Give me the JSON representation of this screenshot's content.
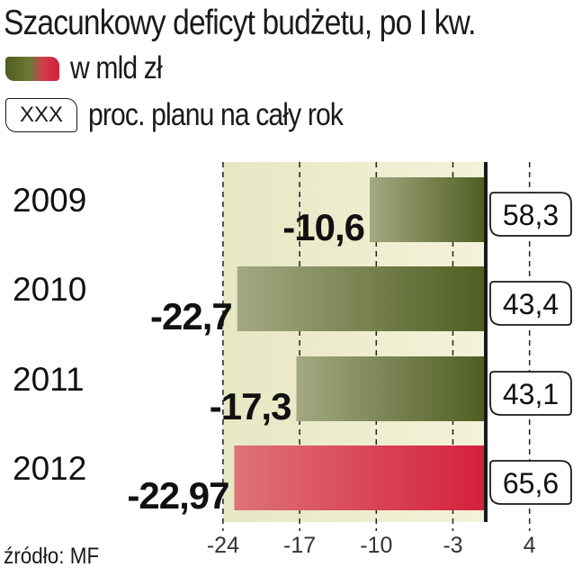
{
  "legend": {
    "value_label": "w mld zł",
    "box_sample": "XXX",
    "box_label": "proc. planu na cały rok"
  },
  "source": "źródło: MF",
  "colors": {
    "bar_dark": "#4f5e22",
    "bar_light": "#a3a982",
    "highlight_dark": "#d4203c",
    "highlight_light": "#de7276",
    "plot_bg": "#f4f3d9",
    "axis": "#1a1a1a"
  },
  "chart_data": {
    "type": "bar",
    "orientation": "horizontal",
    "title": "Szacunkowy deficyt budżetu, po I kw.",
    "categories": [
      "2009",
      "2010",
      "2011",
      "2012"
    ],
    "series": [
      {
        "name": "w mld zł",
        "values": [
          -10.6,
          -22.7,
          -17.3,
          -22.97
        ],
        "labels": [
          "-10,6",
          "-22,7",
          "-17,3",
          "-22,97"
        ]
      }
    ],
    "plan_percent": {
      "name": "proc. planu na cały rok",
      "values": [
        58.3,
        43.4,
        43.1,
        65.6
      ],
      "labels": [
        "58,3",
        "43,4",
        "43,1",
        "65,6"
      ]
    },
    "highlight_category": "2012",
    "x_ticks": [
      -24,
      -17,
      -10,
      -3,
      4
    ],
    "xlim": [
      -24,
      4
    ],
    "grid": true
  }
}
